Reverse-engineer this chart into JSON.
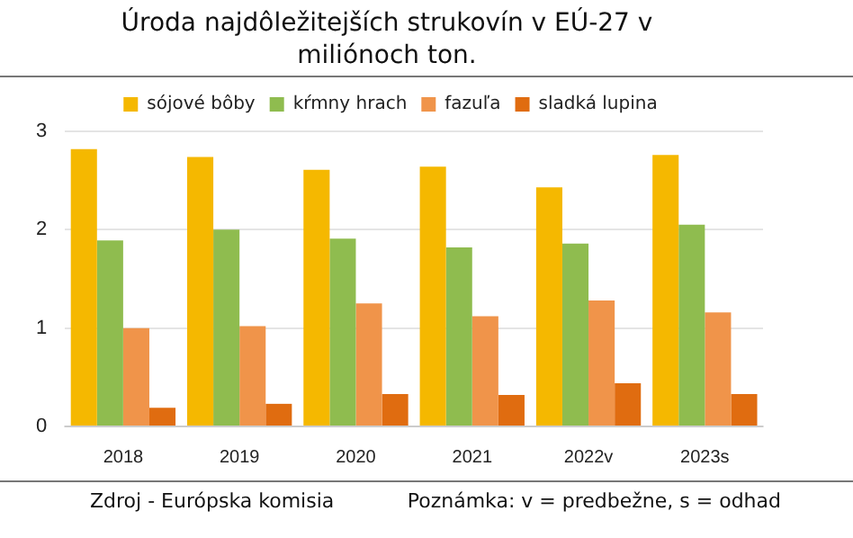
{
  "chart_data": {
    "type": "bar",
    "title": "Úroda najdôležitejších strukovín v EÚ-27 v miliónoch ton.",
    "categories": [
      "2018",
      "2019",
      "2020",
      "2021",
      "2022v",
      "2023s"
    ],
    "series": [
      {
        "name": "sójové bôby",
        "color": "#f5b800",
        "values": [
          2.82,
          2.74,
          2.61,
          2.64,
          2.43,
          2.76
        ]
      },
      {
        "name": "kŕmny hrach",
        "color": "#8fbc4f",
        "values": [
          1.89,
          2.0,
          1.91,
          1.82,
          1.86,
          2.05
        ]
      },
      {
        "name": "fazuľa",
        "color": "#f0944a",
        "values": [
          1.0,
          1.02,
          1.25,
          1.12,
          1.28,
          1.16
        ]
      },
      {
        "name": "sladká lupina",
        "color": "#e06c10",
        "values": [
          0.19,
          0.23,
          0.33,
          0.32,
          0.44,
          0.33
        ]
      }
    ],
    "ylim": [
      0,
      3
    ],
    "yticks": [
      0,
      1,
      2,
      3
    ],
    "grid": "y",
    "legend": "top",
    "annotations": [
      "Zdroj - Európska komisia",
      "Poznámka: v = predbežne, s = odhad"
    ]
  }
}
